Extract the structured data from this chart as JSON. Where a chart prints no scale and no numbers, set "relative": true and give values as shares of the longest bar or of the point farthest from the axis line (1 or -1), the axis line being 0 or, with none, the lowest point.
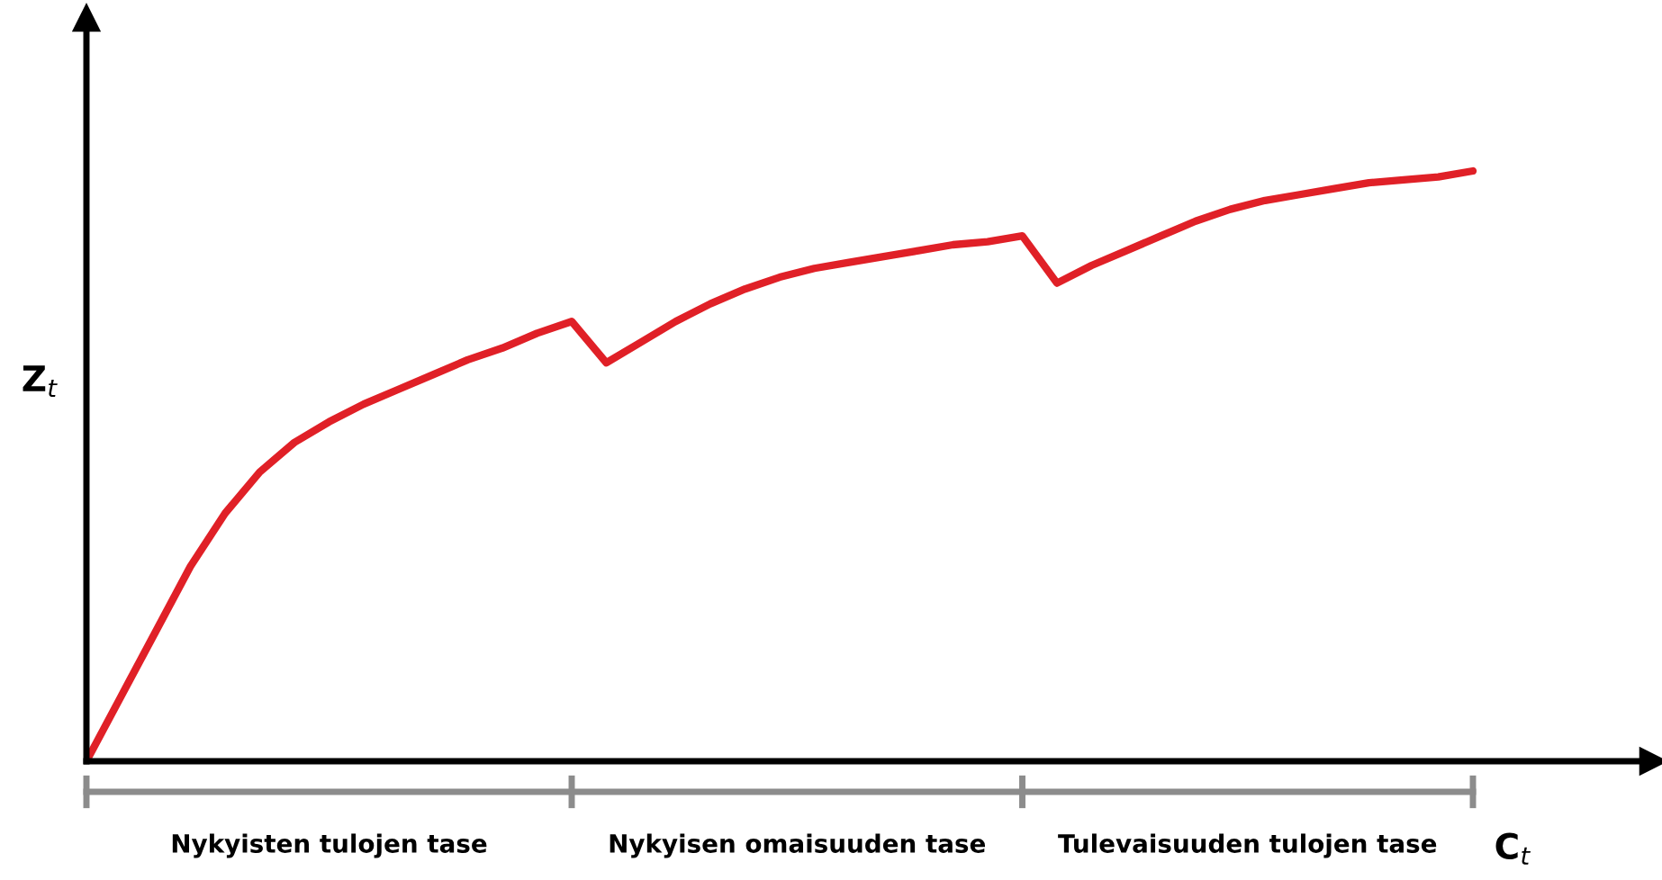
{
  "chart_data": {
    "type": "line",
    "relative": true,
    "xlabel": "C$_{t}$",
    "ylabel": "Z$_{t}$",
    "categories": [
      null,
      null,
      null,
      null,
      null,
      null,
      null,
      null,
      null,
      null,
      null,
      null,
      null,
      null,
      null,
      null,
      null,
      null,
      null,
      null,
      null,
      null,
      null,
      null,
      null,
      null,
      null,
      null,
      null,
      null,
      null,
      null,
      null,
      null,
      null,
      null,
      null,
      null,
      null,
      null,
      null
    ],
    "series": [
      {
        "color": "#e02027",
        "values": [
          0,
          0.11,
          0.22,
          0.33,
          0.42,
          0.49,
          0.54,
          0.575,
          0.605,
          0.63,
          0.655,
          0.68,
          0.7,
          0.725,
          0.745,
          0.675,
          0.71,
          0.745,
          0.775,
          0.8,
          0.82,
          0.835,
          0.845,
          0.855,
          0.865,
          0.875,
          0.88,
          0.89,
          0.81,
          0.84,
          0.865,
          0.89,
          0.915,
          0.935,
          0.95,
          0.96,
          0.97,
          0.98,
          0.985,
          0.99,
          1.0
        ]
      }
    ],
    "annotations": [
      "Nykyisten tulojen tase",
      "Nykyisen omaisuuden tase",
      "Tulevaisuuden tulojen tase"
    ],
    "marker": "none",
    "line_style": "solid"
  }
}
